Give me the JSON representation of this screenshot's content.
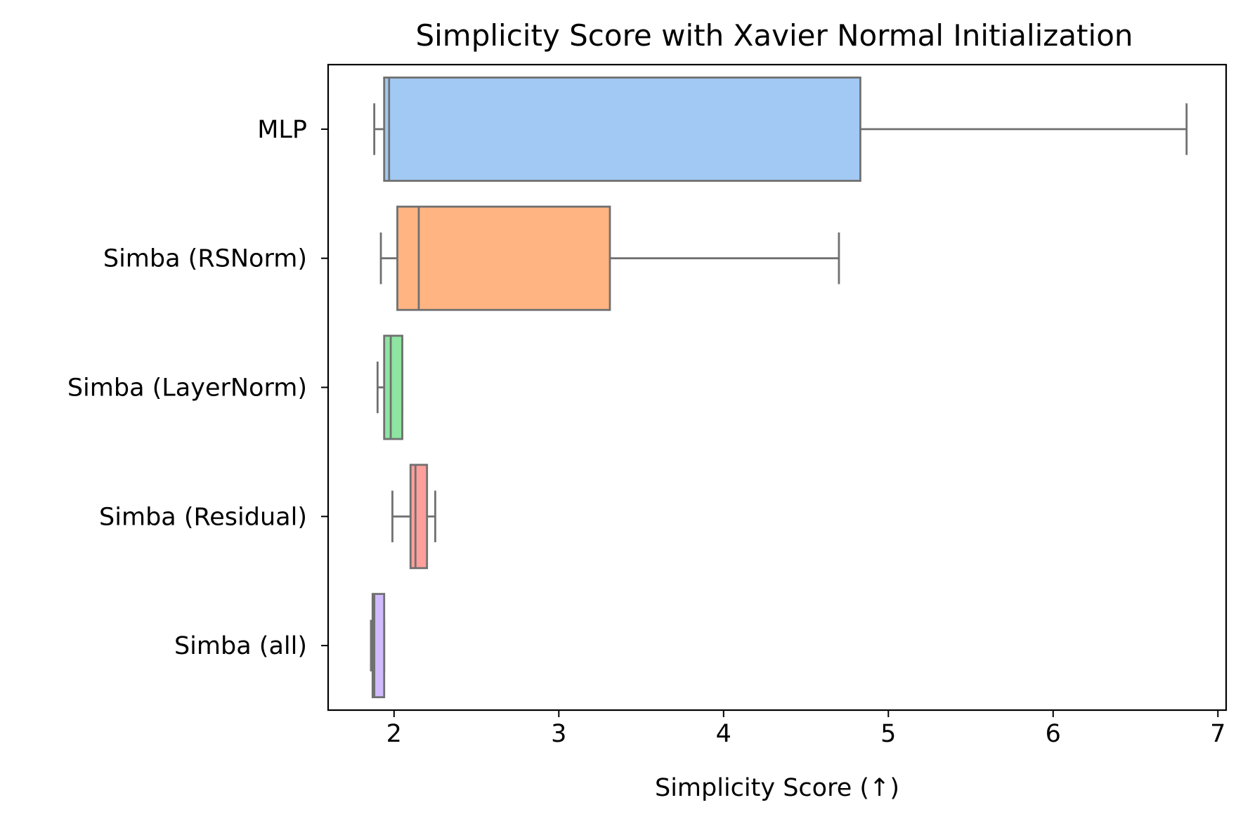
{
  "chart_data": {
    "type": "boxplot",
    "orientation": "horizontal",
    "title": "Simplicity Score with Xavier Normal Initialization",
    "xlabel": "Simplicity Score (↑)",
    "ylabel": "",
    "xlim": [
      1.6,
      7.05
    ],
    "xticks": [
      2,
      3,
      4,
      5,
      6,
      7
    ],
    "xtick_labels": [
      "2",
      "3",
      "4",
      "5",
      "6",
      "7"
    ],
    "grid": false,
    "legend": false,
    "categories": [
      "MLP",
      "Simba (RSNorm)",
      "Simba (LayerNorm)",
      "Simba (Residual)",
      "Simba (all)"
    ],
    "boxes": [
      {
        "category": "MLP",
        "whisker_low": 1.88,
        "q1": 1.94,
        "median": 1.97,
        "q3": 4.83,
        "whisker_high": 6.81,
        "color": "#a1c9f4"
      },
      {
        "category": "Simba (RSNorm)",
        "whisker_low": 1.92,
        "q1": 2.02,
        "median": 2.15,
        "q3": 3.31,
        "whisker_high": 4.7,
        "color": "#ffb482"
      },
      {
        "category": "Simba (LayerNorm)",
        "whisker_low": 1.9,
        "q1": 1.94,
        "median": 1.98,
        "q3": 2.05,
        "whisker_high": 2.05,
        "color": "#8de5a1"
      },
      {
        "category": "Simba (Residual)",
        "whisker_low": 1.99,
        "q1": 2.1,
        "median": 2.13,
        "q3": 2.2,
        "whisker_high": 2.25,
        "color": "#ff9f9b"
      },
      {
        "category": "Simba (all)",
        "whisker_low": 1.86,
        "q1": 1.87,
        "median": 1.88,
        "q3": 1.94,
        "whisker_high": 1.94,
        "color": "#d0bbff"
      }
    ],
    "line_color": "#707070"
  }
}
